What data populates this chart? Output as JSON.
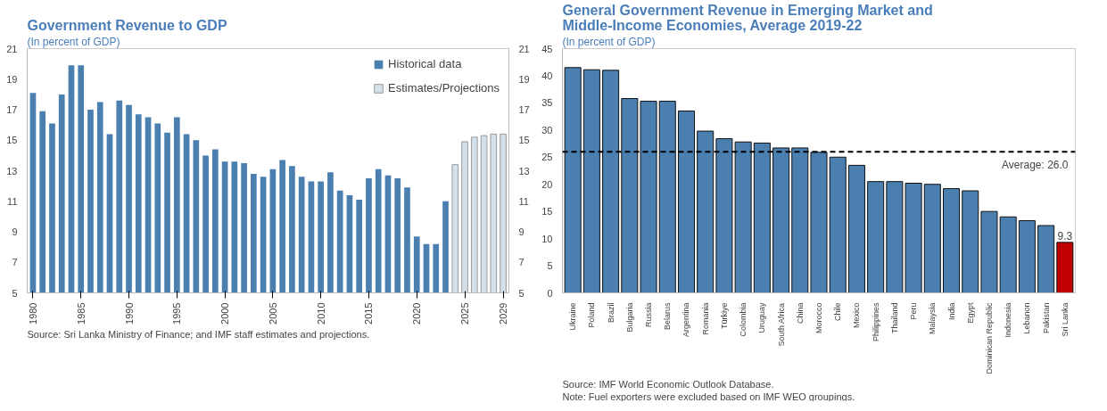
{
  "chart_data": [
    {
      "type": "bar",
      "title": "Government Revenue to GDP",
      "subtitle": "(In percent of GDP)",
      "series": [
        {
          "name": "Historical data",
          "color": "#4a7fb0",
          "x": [
            1980,
            1981,
            1982,
            1983,
            1984,
            1985,
            1986,
            1987,
            1988,
            1989,
            1990,
            1991,
            1992,
            1993,
            1994,
            1995,
            1996,
            1997,
            1998,
            1999,
            2000,
            2001,
            2002,
            2003,
            2004,
            2005,
            2006,
            2007,
            2008,
            2009,
            2010,
            2011,
            2012,
            2013,
            2014,
            2015,
            2016,
            2017,
            2018,
            2019,
            2020,
            2021,
            2022,
            2023
          ],
          "values": [
            18.1,
            16.9,
            16.1,
            18.0,
            19.9,
            19.9,
            17.0,
            17.5,
            15.4,
            17.6,
            17.3,
            16.7,
            16.5,
            16.1,
            15.5,
            16.5,
            15.4,
            15.0,
            14.0,
            14.4,
            13.6,
            13.6,
            13.5,
            12.8,
            12.6,
            13.1,
            13.7,
            13.3,
            12.6,
            12.3,
            12.3,
            12.9,
            11.7,
            11.4,
            11.1,
            12.5,
            13.1,
            12.7,
            12.5,
            11.9,
            8.7,
            8.2,
            8.2,
            11.0
          ]
        },
        {
          "name": "Estimates/Projections",
          "color": "#d3e0ea",
          "x": [
            2024,
            2025,
            2026,
            2027,
            2028,
            2029
          ],
          "values": [
            13.4,
            14.9,
            15.2,
            15.3,
            15.4,
            15.4
          ]
        }
      ],
      "xlim": [
        1979.4,
        2029.6
      ],
      "xticks": [
        1980,
        1985,
        1990,
        1995,
        2000,
        2005,
        2010,
        2015,
        2020,
        2025,
        2029
      ],
      "ylim": [
        5,
        21
      ],
      "yticks": [
        5,
        7,
        9,
        11,
        13,
        15,
        17,
        19,
        21
      ],
      "y2lim": [
        5,
        21
      ],
      "y2ticks": [
        5,
        7,
        9,
        11,
        13,
        15,
        17,
        19,
        21
      ],
      "grid": false,
      "legend": "top right",
      "annotations": [
        "Source: Sri Lanka Ministry of Finance; and IMF staff estimates and projections."
      ]
    },
    {
      "type": "bar",
      "title": "General Government Revenue in Emerging Market and Middle-Income Economies, Average 2019-22",
      "subtitle": "(In percent of GDP)",
      "categories": [
        "Ukraine",
        "Poland",
        "Brazil",
        "Bulgaria",
        "Russia",
        "Belarus",
        "Argentina",
        "Romania",
        "Türkiye",
        "Colombia",
        "Uruguay",
        "South Africa",
        "China",
        "Morocco",
        "Chile",
        "Mexico",
        "Philippines",
        "Thailand",
        "Peru",
        "Malaysia",
        "India",
        "Egypt",
        "Dominican Republic",
        "Indonesia",
        "Lebanon",
        "Pakistan",
        "Sri Lanka"
      ],
      "values": [
        41.5,
        41.1,
        41.0,
        35.8,
        35.3,
        35.3,
        33.5,
        29.8,
        28.4,
        27.8,
        27.6,
        26.7,
        26.7,
        25.9,
        25.0,
        23.5,
        20.5,
        20.5,
        20.2,
        20.0,
        19.2,
        18.8,
        15.0,
        14.0,
        13.3,
        12.4,
        9.3
      ],
      "colors": [
        "#4a7fb0",
        "#4a7fb0",
        "#4a7fb0",
        "#4a7fb0",
        "#4a7fb0",
        "#4a7fb0",
        "#4a7fb0",
        "#4a7fb0",
        "#4a7fb0",
        "#4a7fb0",
        "#4a7fb0",
        "#4a7fb0",
        "#4a7fb0",
        "#4a7fb0",
        "#4a7fb0",
        "#4a7fb0",
        "#4a7fb0",
        "#4a7fb0",
        "#4a7fb0",
        "#4a7fb0",
        "#4a7fb0",
        "#4a7fb0",
        "#4a7fb0",
        "#4a7fb0",
        "#4a7fb0",
        "#4a7fb0",
        "#c00000"
      ],
      "value_labels": [
        null,
        null,
        null,
        null,
        null,
        null,
        null,
        null,
        null,
        null,
        null,
        null,
        null,
        null,
        null,
        null,
        null,
        null,
        null,
        null,
        null,
        null,
        null,
        null,
        null,
        null,
        "9.3"
      ],
      "ylim": [
        0,
        45
      ],
      "yticks": [
        0,
        5,
        10,
        15,
        20,
        25,
        30,
        35,
        40,
        45
      ],
      "grid": false,
      "ref_lines": [
        {
          "axis": "y",
          "value": 26.0,
          "label": "Average: 26.0",
          "color": "#000000",
          "line_style": "dashed"
        }
      ],
      "annotations": [
        "Source: IMF World Economic Outlook Database.",
        "Note: Fuel exporters were excluded based on IMF WEO groupings."
      ]
    }
  ]
}
